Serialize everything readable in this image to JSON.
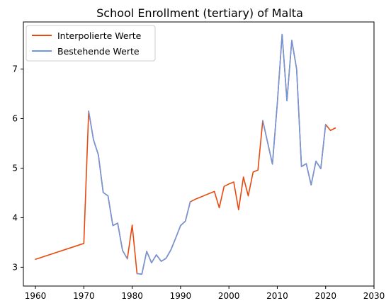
{
  "chart_data": {
    "type": "line",
    "title": "School Enrollment (tertiary) of Malta",
    "xlabel": "",
    "ylabel": "",
    "xlim": [
      1957.5,
      2030
    ],
    "ylim": [
      2.62,
      7.95
    ],
    "xticks": [
      1960,
      1970,
      1980,
      1990,
      2000,
      2010,
      2020,
      2030
    ],
    "yticks": [
      3,
      4,
      5,
      6,
      7
    ],
    "grid": false,
    "legend": "top-left",
    "colors": {
      "interpolated": "#e8490f",
      "existing": "#6f97dd"
    },
    "series": [
      {
        "name": "Interpolierte Werte",
        "color": "#e8490f",
        "x": [
          1960,
          1970,
          1971,
          1972,
          1973,
          1974,
          1975,
          1976,
          1977,
          1978,
          1979,
          1980,
          1981,
          1982,
          1983,
          1984,
          1985,
          1986,
          1987,
          1988,
          1989,
          1990,
          1991,
          1992,
          1993,
          1994,
          1995,
          1996,
          1997,
          1998,
          1999,
          2000,
          2001,
          2002,
          2003,
          2004,
          2005,
          2006,
          2007,
          2008,
          2009,
          2010,
          2011,
          2012,
          2013,
          2014,
          2015,
          2016,
          2017,
          2018,
          2019,
          2020,
          2021,
          2022
        ],
        "y": [
          3.16,
          3.48,
          6.15,
          5.57,
          5.27,
          4.51,
          4.44,
          3.84,
          3.89,
          3.34,
          3.17,
          3.85,
          2.87,
          2.86,
          3.32,
          3.09,
          3.25,
          3.12,
          3.18,
          3.35,
          3.59,
          3.84,
          3.93,
          4.32,
          4.37,
          4.41,
          4.45,
          4.49,
          4.53,
          4.2,
          4.63,
          4.68,
          4.72,
          4.16,
          4.82,
          4.44,
          4.92,
          4.96,
          5.96,
          5.52,
          5.08,
          6.3,
          7.7,
          6.36,
          7.58,
          7.0,
          5.03,
          5.09,
          4.66,
          5.14,
          4.99,
          5.88,
          5.76,
          5.81
        ]
      },
      {
        "name": "Bestehende Werte",
        "color": "#6f97dd",
        "segments": [
          {
            "x": [
              1971,
              1972,
              1973,
              1974,
              1975,
              1976,
              1977,
              1978,
              1979
            ],
            "y": [
              6.15,
              5.57,
              5.27,
              4.51,
              4.44,
              3.84,
              3.89,
              3.34,
              3.17
            ]
          },
          {
            "x": [
              1981,
              1982,
              1983,
              1984,
              1985,
              1986,
              1987,
              1988,
              1989,
              1990,
              1991,
              1992
            ],
            "y": [
              2.87,
              2.86,
              3.32,
              3.09,
              3.25,
              3.12,
              3.18,
              3.35,
              3.59,
              3.84,
              3.93,
              4.32
            ]
          },
          {
            "x": [
              2007,
              2008,
              2009,
              2010,
              2011,
              2012,
              2013,
              2014,
              2015,
              2016,
              2017,
              2018,
              2019,
              2020
            ],
            "y": [
              5.96,
              5.52,
              5.08,
              6.3,
              7.7,
              6.36,
              7.58,
              7.0,
              5.03,
              5.09,
              4.66,
              5.14,
              4.99,
              5.88
            ]
          }
        ]
      }
    ]
  }
}
